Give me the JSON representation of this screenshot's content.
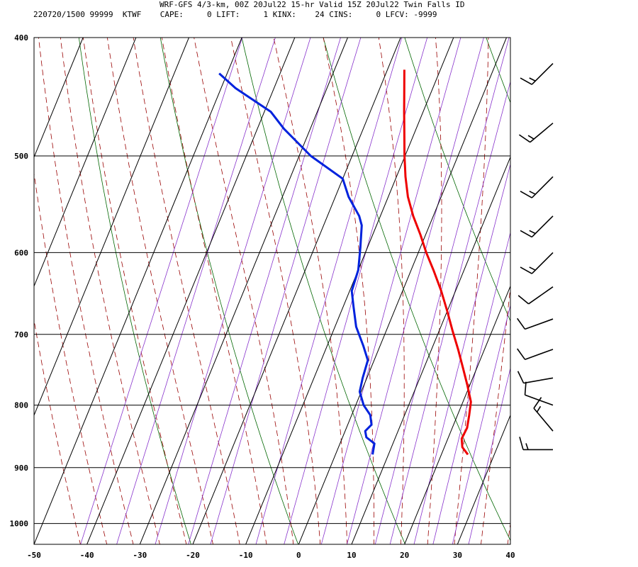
{
  "header": {
    "title": "WRF-GFS 4/3-km, 00Z 20Jul22 15-hr Valid 15Z 20Jul22 Twin Falls ID",
    "info": "220720/1500 99999  KTWF    CAPE:     0 LIFT:     1 KINX:    24 CINS:     0 LFCV: -9999"
  },
  "chart_data": {
    "type": "line",
    "title": "WRF-GFS 4/3-km, 00Z 20Jul22 15-hr Valid 15Z 20Jul22 Twin Falls ID",
    "xlabel": "",
    "ylabel": "",
    "x_ticks": [
      -50,
      -40,
      -30,
      -20,
      -10,
      0,
      10,
      20,
      30,
      40
    ],
    "y_ticks": [
      400,
      500,
      600,
      700,
      800,
      900,
      1000
    ],
    "xlim": [
      -50,
      40
    ],
    "ylim": [
      1040,
      400
    ],
    "y_scale": "log-pressure",
    "grid": true,
    "skew": "temperature lines skewed with pressure",
    "colors": {
      "temperature": "#ee0000",
      "dewpoint": "#0022dd",
      "dry_adiabats": "#006600",
      "moist_adiabats": "#990000",
      "mixing_ratio": "#8833cc",
      "grid": "#000000"
    },
    "series": [
      {
        "points": [
          {
            "p": 878,
            "t": 25.0
          },
          {
            "p": 866,
            "t": 23.4
          },
          {
            "p": 852,
            "t": 22.6
          },
          {
            "p": 835,
            "t": 22.8
          },
          {
            "p": 815,
            "t": 22.2
          },
          {
            "p": 795,
            "t": 21.5
          },
          {
            "p": 770,
            "t": 19.5
          },
          {
            "p": 745,
            "t": 17.3
          },
          {
            "p": 720,
            "t": 15.0
          },
          {
            "p": 695,
            "t": 12.5
          },
          {
            "p": 670,
            "t": 10.0
          },
          {
            "p": 645,
            "t": 7.3
          },
          {
            "p": 620,
            "t": 4.2
          },
          {
            "p": 600,
            "t": 1.5
          },
          {
            "p": 580,
            "t": -1.0
          },
          {
            "p": 560,
            "t": -3.8
          },
          {
            "p": 540,
            "t": -6.3
          },
          {
            "p": 520,
            "t": -8.3
          },
          {
            "p": 500,
            "t": -10.1
          },
          {
            "p": 480,
            "t": -11.8
          },
          {
            "p": 460,
            "t": -13.6
          },
          {
            "p": 440,
            "t": -15.4
          },
          {
            "p": 425,
            "t": -16.8
          }
        ]
      },
      {
        "points": [
          {
            "p": 878,
            "t": 7.0
          },
          {
            "p": 860,
            "t": 6.5
          },
          {
            "p": 850,
            "t": 4.5
          },
          {
            "p": 840,
            "t": 3.8
          },
          {
            "p": 830,
            "t": 4.5
          },
          {
            "p": 815,
            "t": 3.5
          },
          {
            "p": 800,
            "t": 1.5
          },
          {
            "p": 780,
            "t": -0.3
          },
          {
            "p": 760,
            "t": -0.8
          },
          {
            "p": 735,
            "t": -1.2
          },
          {
            "p": 715,
            "t": -3.2
          },
          {
            "p": 690,
            "t": -6.0
          },
          {
            "p": 665,
            "t": -8.0
          },
          {
            "p": 645,
            "t": -9.6
          },
          {
            "p": 620,
            "t": -10.0
          },
          {
            "p": 595,
            "t": -11.3
          },
          {
            "p": 570,
            "t": -12.8
          },
          {
            "p": 560,
            "t": -14.0
          },
          {
            "p": 540,
            "t": -17.5
          },
          {
            "p": 522,
            "t": -20.0
          },
          {
            "p": 500,
            "t": -27.8
          },
          {
            "p": 475,
            "t": -35.0
          },
          {
            "p": 460,
            "t": -38.8
          },
          {
            "p": 440,
            "t": -47.3
          },
          {
            "p": 428,
            "t": -51.5
          }
        ]
      }
    ],
    "wind_barbs": [
      {
        "p": 420,
        "dir": 225,
        "kt": 15
      },
      {
        "p": 470,
        "dir": 230,
        "kt": 15
      },
      {
        "p": 520,
        "dir": 225,
        "kt": 15
      },
      {
        "p": 560,
        "dir": 225,
        "kt": 15
      },
      {
        "p": 600,
        "dir": 225,
        "kt": 15
      },
      {
        "p": 640,
        "dir": 235,
        "kt": 10
      },
      {
        "p": 680,
        "dir": 250,
        "kt": 10
      },
      {
        "p": 720,
        "dir": 250,
        "kt": 10
      },
      {
        "p": 760,
        "dir": 260,
        "kt": 10
      },
      {
        "p": 800,
        "dir": 290,
        "kt": 10
      },
      {
        "p": 840,
        "dir": 320,
        "kt": 15
      },
      {
        "p": 870,
        "dir": 270,
        "kt": 15
      }
    ]
  }
}
